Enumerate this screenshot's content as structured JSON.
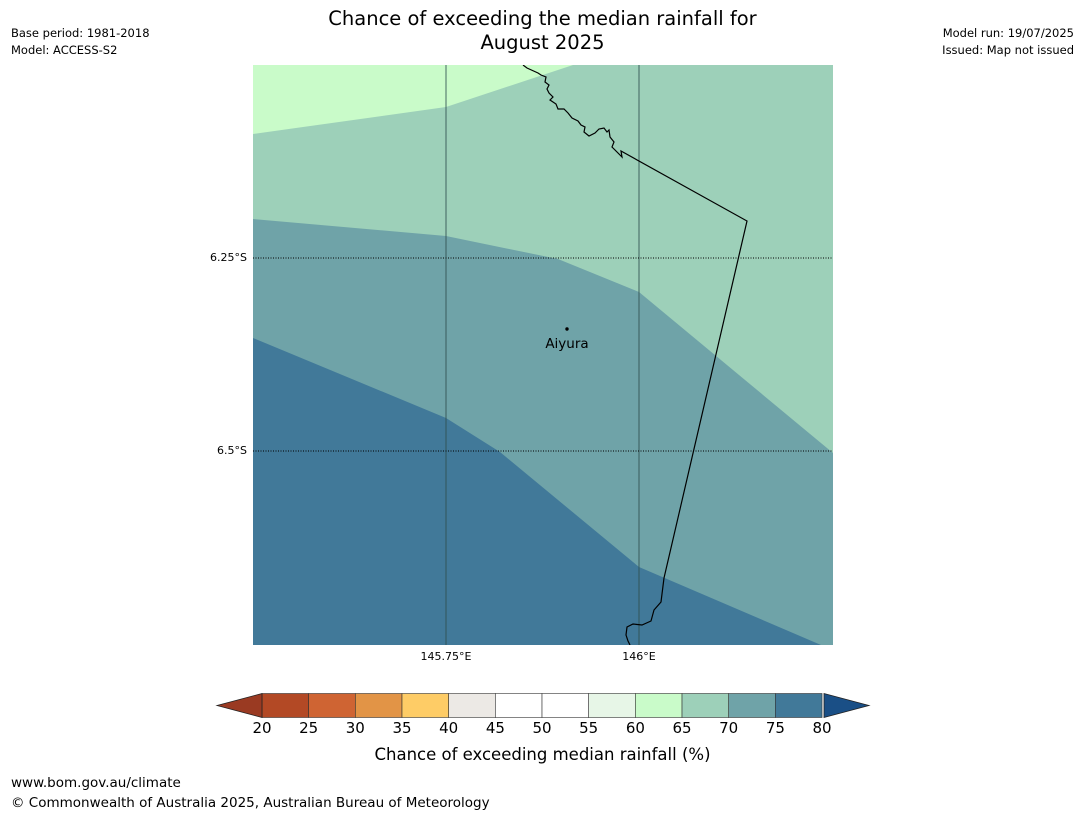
{
  "header": {
    "title_line1": "Chance of exceeding the median rainfall for",
    "title_line2": "August 2025",
    "base_period": "Base period: 1981-2018",
    "model": "Model: ACCESS-S2",
    "model_run": "Model run: 19/07/2025",
    "issued": "Issued: Map not issued"
  },
  "map": {
    "lat_labels": [
      "6.25°S",
      "6.5°S"
    ],
    "lon_labels": [
      "145.75°E",
      "146°E"
    ],
    "place": {
      "name": "Aiyura"
    },
    "zone_colors": {
      "60-65": "#c9fbc9",
      "65-70": "#9dd0b9",
      "70-75": "#6fa3a8",
      "75-80": "#417999"
    },
    "colorbar": {
      "ticks": [
        "20",
        "25",
        "30",
        "35",
        "40",
        "45",
        "50",
        "55",
        "60",
        "65",
        "70",
        "75",
        "80"
      ],
      "colors": [
        "#b34925",
        "#cf6433",
        "#e29446",
        "#fecc66",
        "#ece9e5",
        "#ffffff",
        "#ffffff",
        "#e7f6e7",
        "#c9fbc9",
        "#9dd0b9",
        "#6fa3a8",
        "#417999"
      ],
      "low_extend_color": "#9a3a22",
      "high_extend_color": "#1a4f86",
      "label": "Chance of exceeding median rainfall (%)"
    }
  },
  "footer": {
    "url": "www.bom.gov.au/climate",
    "copyright": "© Commonwealth of Australia 2025, Australian Bureau of Meteorology"
  }
}
